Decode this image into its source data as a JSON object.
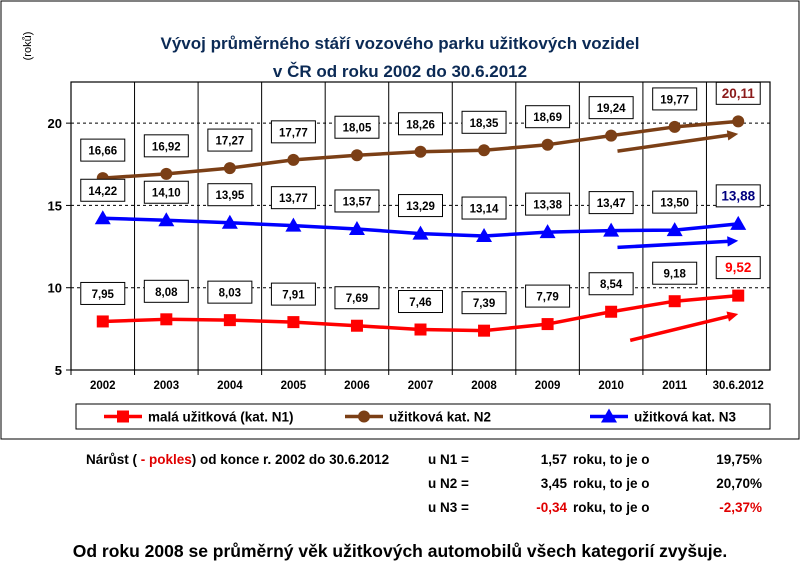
{
  "chart_data": {
    "type": "line",
    "title_line1": "Vývoj průměrného stáří vozového parku užitkových vozidel",
    "title_line2": "v ČR od roku 2002 do 30.6.2012",
    "ylabel": "(roků)",
    "ylim": [
      5,
      22.5
    ],
    "yticks": [
      "5",
      "10",
      "15",
      "20"
    ],
    "grid": true,
    "legend_position": "bottom",
    "categories": [
      "2002",
      "2003",
      "2004",
      "2005",
      "2006",
      "2007",
      "2008",
      "2009",
      "2010",
      "2011",
      "30.6.2012"
    ],
    "series": [
      {
        "name": "malá užitková (kat. N1)",
        "color": "#ff0000",
        "marker": "square",
        "values": [
          7.95,
          8.08,
          8.03,
          7.91,
          7.69,
          7.46,
          7.39,
          7.79,
          8.54,
          9.18,
          9.52
        ],
        "labels": [
          "7,95",
          "8,08",
          "8,03",
          "7,91",
          "7,69",
          "7,46",
          "7,39",
          "7,79",
          "8,54",
          "9,18",
          "9,52"
        ],
        "trend": {
          "from": [
            2010.3,
            6.8
          ],
          "to": [
            2012,
            8.4
          ]
        }
      },
      {
        "name": "užitková kat. N2",
        "color": "#7b3f16",
        "marker": "circle",
        "values": [
          16.66,
          16.92,
          17.27,
          17.77,
          18.05,
          18.26,
          18.35,
          18.69,
          19.24,
          19.77,
          20.11
        ],
        "labels": [
          "16,66",
          "16,92",
          "17,27",
          "17,77",
          "18,05",
          "18,26",
          "18,35",
          "18,69",
          "19,24",
          "19,77",
          "20,11"
        ],
        "trend": {
          "from": [
            2010.1,
            18.3
          ],
          "to": [
            2012,
            19.35
          ]
        }
      },
      {
        "name": "užitková kat. N3",
        "color": "#0000ff",
        "marker": "triangle",
        "values": [
          14.22,
          14.1,
          13.95,
          13.77,
          13.57,
          13.29,
          13.14,
          13.38,
          13.47,
          13.5,
          13.88
        ],
        "labels": [
          "14,22",
          "14,10",
          "13,95",
          "13,77",
          "13,57",
          "13,29",
          "13,14",
          "13,38",
          "13,47",
          "13,50",
          "13,88"
        ],
        "trend": {
          "from": [
            2010.1,
            12.45
          ],
          "to": [
            2012,
            12.85
          ]
        }
      }
    ]
  },
  "stats": {
    "intro_a": "Nárůst (",
    "intro_b": " - pokles",
    "intro_c": ") od konce r. 2002 do 30.6.2012",
    "rows": [
      {
        "label": "u N1  =",
        "value": "1,57",
        "unit": "roku, to je o",
        "pct": "19,75%",
        "negative": false
      },
      {
        "label": "u N2  =",
        "value": "3,45",
        "unit": "roku, to je o",
        "pct": "20,70%",
        "negative": false
      },
      {
        "label": "u N3  =",
        "value": "-0,34",
        "unit": "roku, to je o",
        "pct": "-2,37%",
        "negative": true
      }
    ]
  },
  "footer": "Od roku 2008 se průměrný věk užitkových automobilů všech kategorií zvyšuje."
}
